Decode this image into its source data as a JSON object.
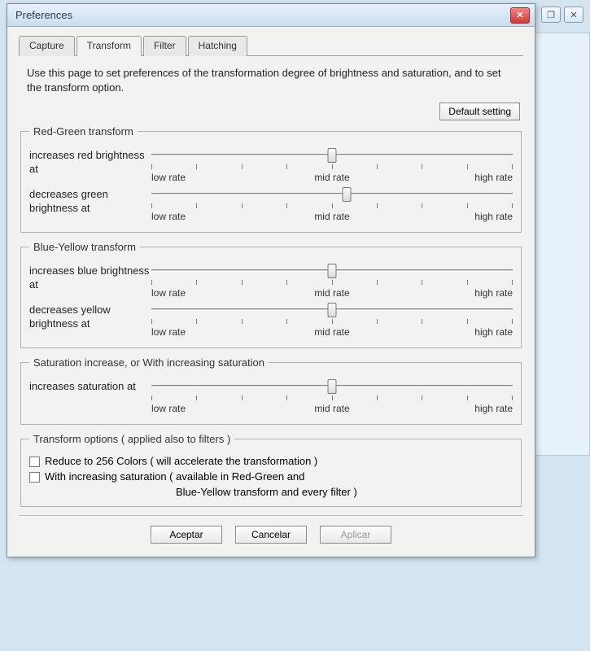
{
  "window": {
    "title": "Preferences",
    "close_icon": "✕",
    "bg_restore_icon": "❐",
    "bg_close_icon": "✕"
  },
  "tabs": [
    {
      "label": "Capture",
      "active": false
    },
    {
      "label": "Transform",
      "active": true
    },
    {
      "label": "Filter",
      "active": false
    },
    {
      "label": "Hatching",
      "active": false
    }
  ],
  "page": {
    "description": "Use this page to set preferences of the transformation degree of brightness and saturation, and to set the transform option.",
    "default_button": "Default setting"
  },
  "slider_scale": {
    "low": "low rate",
    "mid": "mid rate",
    "high": "high rate",
    "tick_count": 9
  },
  "groups": {
    "red_green": {
      "legend": "Red-Green transform",
      "sliders": [
        {
          "label": "increases red brightness at",
          "value_pct": 50
        },
        {
          "label": "decreases green brightness at",
          "value_pct": 54
        }
      ]
    },
    "blue_yellow": {
      "legend": "Blue-Yellow transform",
      "sliders": [
        {
          "label": "increases blue brightness at",
          "value_pct": 50
        },
        {
          "label": "decreases yellow brightness at",
          "value_pct": 50
        }
      ]
    },
    "saturation": {
      "legend": "Saturation increase, or With increasing saturation",
      "sliders": [
        {
          "label": "increases saturation at",
          "value_pct": 50
        }
      ]
    },
    "options": {
      "legend": "Transform options ( applied also to filters )",
      "items": [
        {
          "label": "Reduce to 256 Colors ( will accelerate the transformation )",
          "checked": false
        },
        {
          "label": "With increasing saturation ( available in Red-Green and",
          "checked": false,
          "continuation": "Blue-Yellow transform and every filter )"
        }
      ]
    }
  },
  "buttons": {
    "ok": "Aceptar",
    "cancel": "Cancelar",
    "apply": "Aplicar"
  },
  "colors": {
    "dialog_bg": "#f2f2f0",
    "body_bg": "#d4e4f0",
    "border": "#9a9a9a",
    "close_red": "#d23a3a"
  }
}
